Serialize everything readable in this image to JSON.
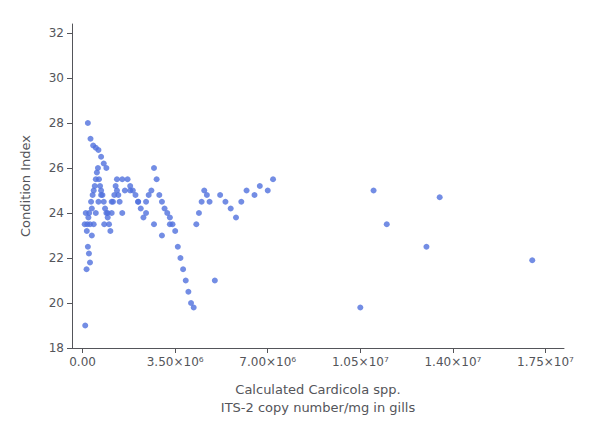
{
  "chart_data": {
    "type": "scatter",
    "xlabel": "Calculated Cardicola spp.\nITS-2 copy number/mg in gills",
    "ylabel": "Condition Index",
    "x": [
      200000,
      300000,
      400000,
      500000,
      600000,
      700000,
      800000,
      900000,
      100000,
      150000,
      180000,
      220000,
      250000,
      280000,
      320000,
      350000,
      380000,
      420000,
      460000,
      500000,
      540000,
      580000,
      620000,
      660000,
      700000,
      750000,
      800000,
      850000,
      900000,
      950000,
      1000000,
      1050000,
      1100000,
      1150000,
      1200000,
      1250000,
      1300000,
      1350000,
      1400000,
      1500000,
      1600000,
      1700000,
      1800000,
      1900000,
      2000000,
      2100000,
      2200000,
      2300000,
      2400000,
      2500000,
      2600000,
      2700000,
      2800000,
      2900000,
      3000000,
      3100000,
      3200000,
      3300000,
      3400000,
      3500000,
      3600000,
      3700000,
      3800000,
      3900000,
      4000000,
      4100000,
      4200000,
      4300000,
      4400000,
      4500000,
      4600000,
      4700000,
      4800000,
      5000000,
      5200000,
      5400000,
      5600000,
      5800000,
      6000000,
      6200000,
      6500000,
      6700000,
      7000000,
      7200000,
      10500000,
      11000000,
      11500000,
      13000000,
      13500000,
      17000000,
      80000,
      120000,
      160000,
      200000,
      240000,
      280000,
      350000,
      420000,
      500000,
      600000,
      700000,
      820000,
      950000,
      1100000,
      1300000,
      1500000,
      1800000,
      2100000,
      2400000,
      2700000,
      3000000,
      3300000
    ],
    "values": [
      28.0,
      27.3,
      27.0,
      26.9,
      26.8,
      26.5,
      26.2,
      26.0,
      19.0,
      21.5,
      23.5,
      23.8,
      24.0,
      23.5,
      24.5,
      24.2,
      24.8,
      25.0,
      25.2,
      25.5,
      25.8,
      26.0,
      25.5,
      25.2,
      25.0,
      24.8,
      24.5,
      24.2,
      24.0,
      23.8,
      23.5,
      23.2,
      24.0,
      24.5,
      24.8,
      25.2,
      25.5,
      24.8,
      24.5,
      24.0,
      25.0,
      25.5,
      25.2,
      25.0,
      24.8,
      24.5,
      24.2,
      23.8,
      24.5,
      24.8,
      25.0,
      26.0,
      25.5,
      24.8,
      24.5,
      24.2,
      24.0,
      23.8,
      23.5,
      23.2,
      22.5,
      22.0,
      21.5,
      21.0,
      20.5,
      20.0,
      19.8,
      23.5,
      24.0,
      24.5,
      25.0,
      24.8,
      24.5,
      21.0,
      24.8,
      24.5,
      24.2,
      23.8,
      24.5,
      25.0,
      24.8,
      25.2,
      25.0,
      25.5,
      19.8,
      25.0,
      23.5,
      22.5,
      24.7,
      21.9,
      23.5,
      24.0,
      23.2,
      22.5,
      22.2,
      21.8,
      23.0,
      23.5,
      24.0,
      24.5,
      24.8,
      23.5,
      24.0,
      24.5,
      25.0,
      25.5,
      25.0,
      24.5,
      24.0,
      23.5,
      23.0,
      23.5
    ],
    "xlim": [
      -400000,
      18200000
    ],
    "ylim": [
      18,
      32.4
    ],
    "xticks": [
      {
        "value": 0,
        "label": "0.00"
      },
      {
        "value": 3500000,
        "label": "3.50×10⁶"
      },
      {
        "value": 7000000,
        "label": "7.00×10⁶"
      },
      {
        "value": 10500000,
        "label": "1.05×10⁷"
      },
      {
        "value": 14000000,
        "label": "1.40×10⁷"
      },
      {
        "value": 17500000,
        "label": "1.75×10⁷"
      }
    ],
    "yticks": [
      18,
      20,
      22,
      24,
      26,
      28,
      30,
      32
    ],
    "grid": false
  }
}
